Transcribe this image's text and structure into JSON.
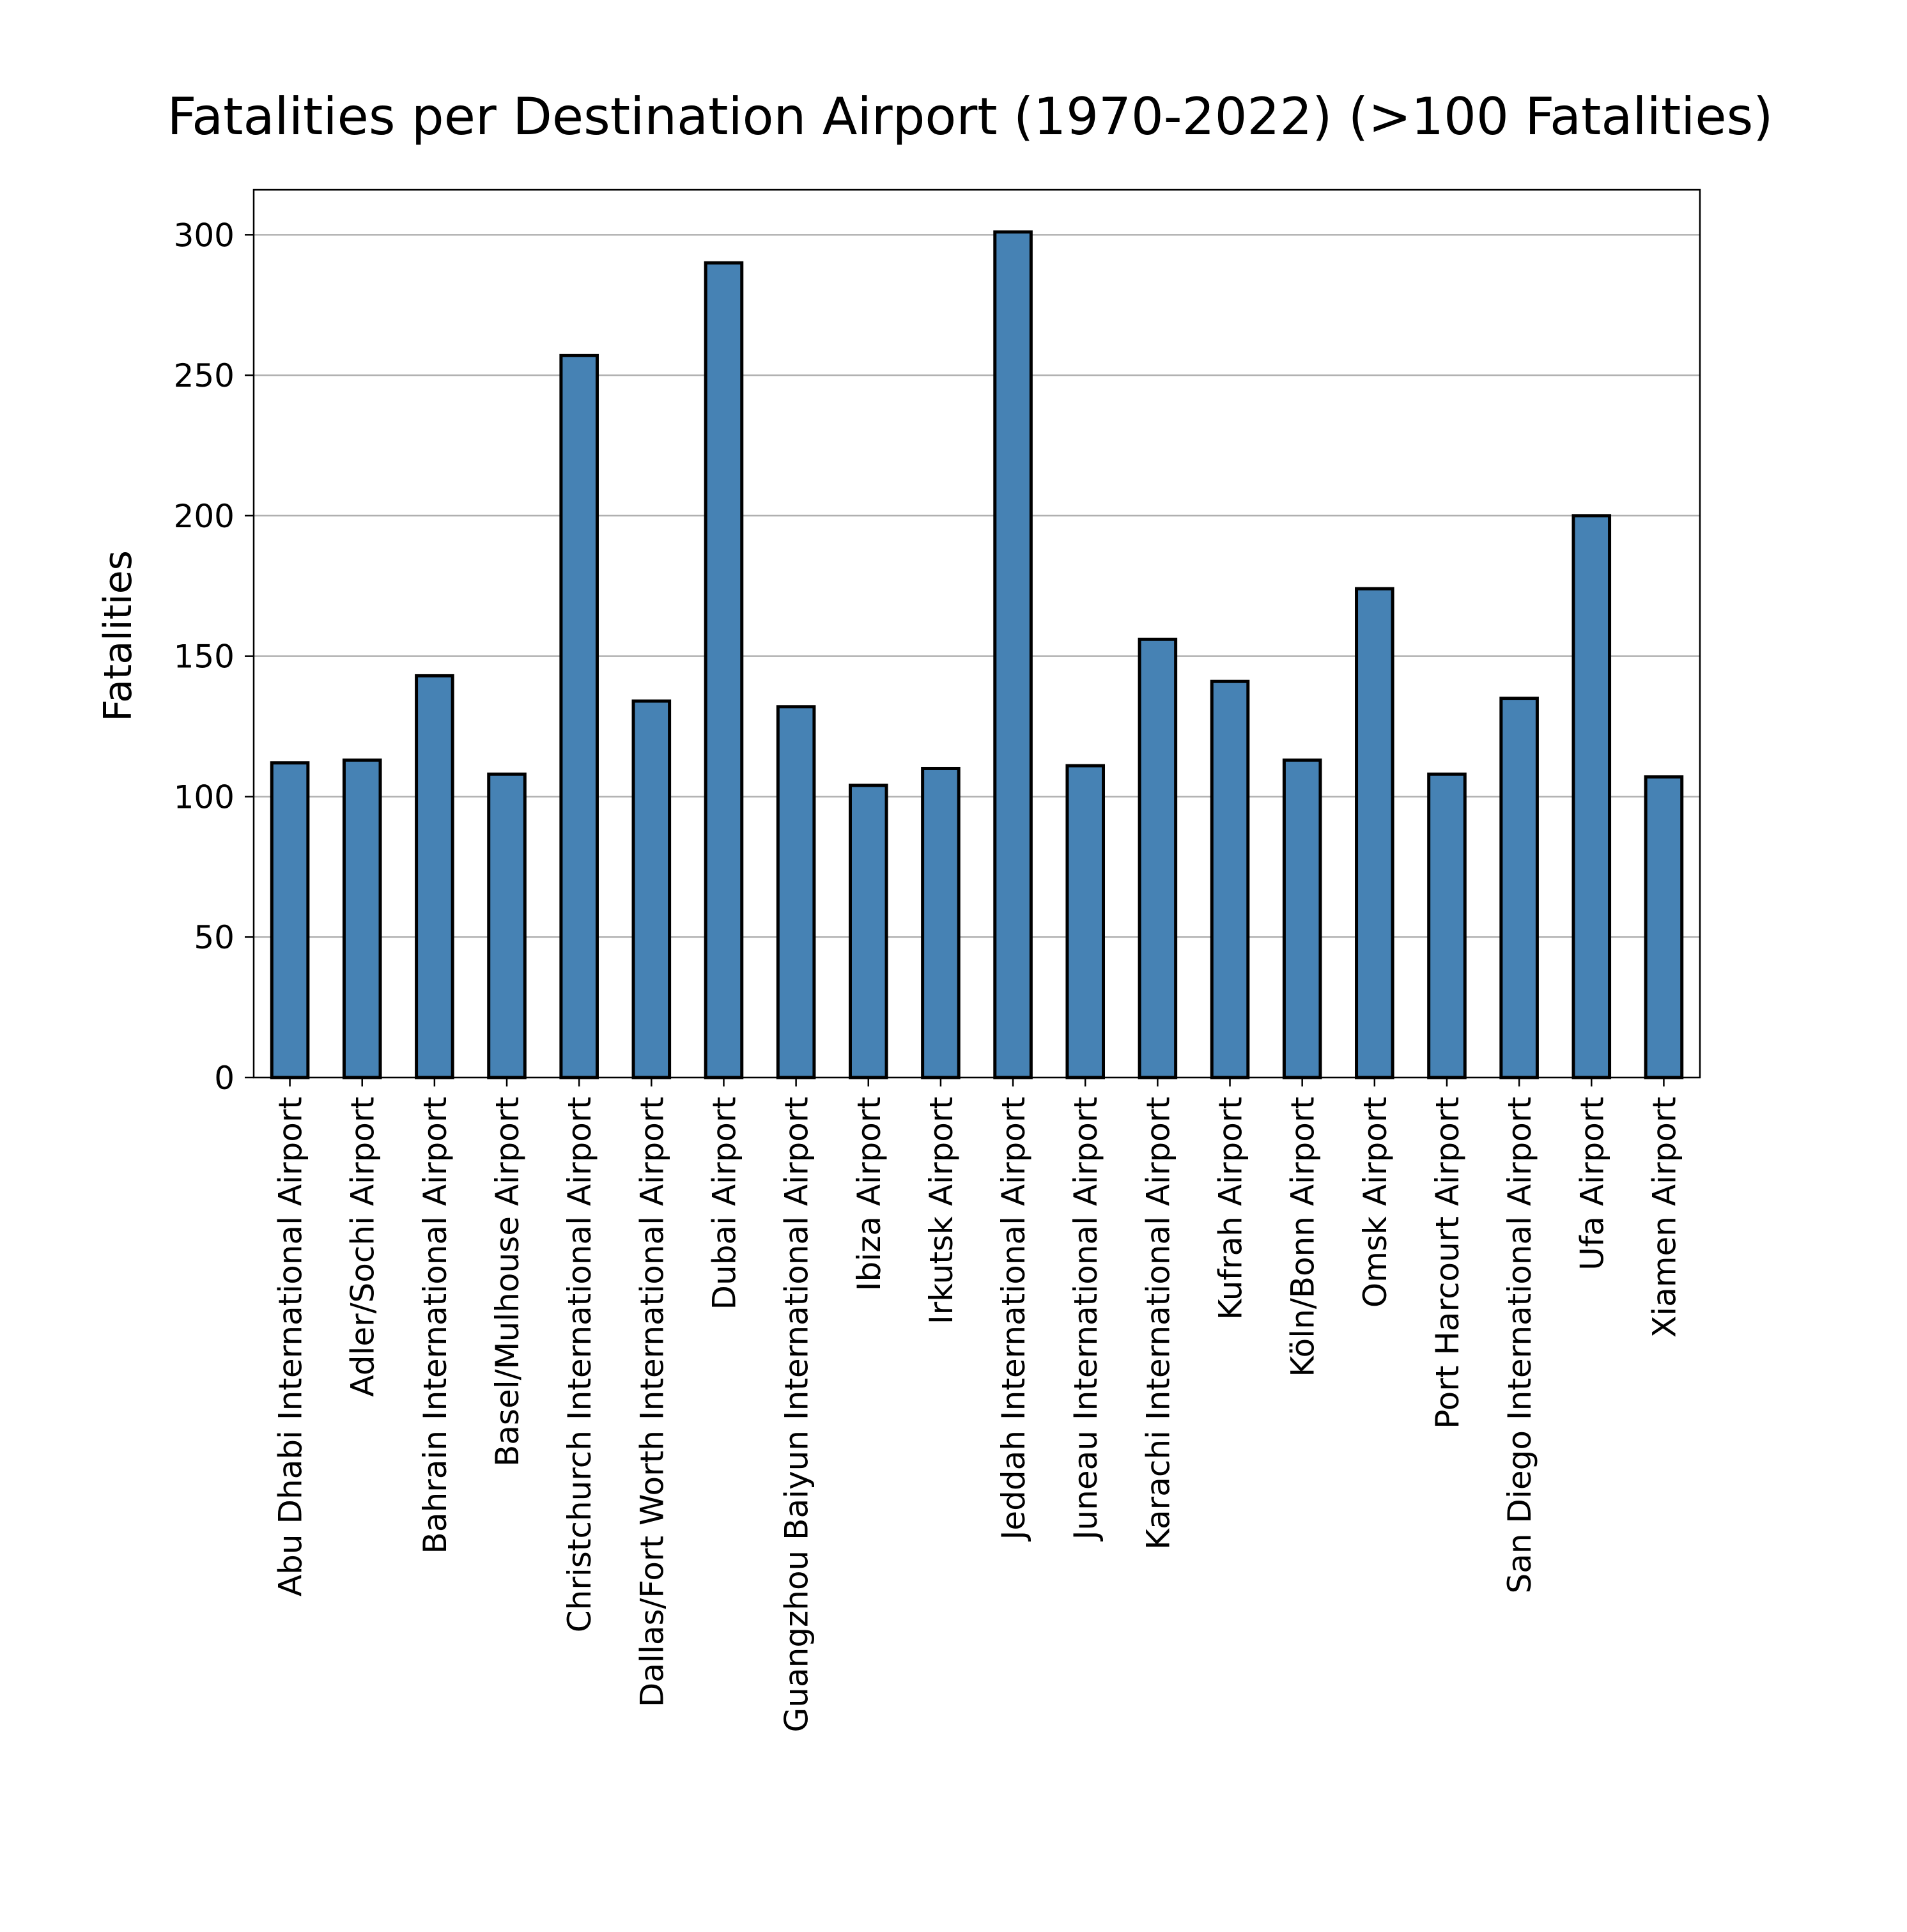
{
  "chart_data": {
    "type": "bar",
    "title": "Fatalities per Destination Airport (1970-2022) (>100 Fatalities)",
    "ylabel": "Fatalities",
    "xlabel": "",
    "ylim": [
      0,
      316
    ],
    "yticks": [
      0,
      50,
      100,
      150,
      200,
      250,
      300
    ],
    "grid": "y",
    "bar_color": "#4682b4",
    "edge_color": "#000000",
    "categories": [
      "Abu Dhabi International Airport",
      "Adler/Sochi Airport",
      "Bahrain International Airport",
      "Basel/Mulhouse Airport",
      "Christchurch International Airport",
      "Dallas/Fort Worth International Airport",
      "Dubai Airport",
      "Guangzhou Baiyun International Airport",
      "Ibiza Airport",
      "Irkutsk Airport",
      "Jeddah International Airport",
      "Juneau International Airport",
      "Karachi International Airport",
      "Kufrah Airport",
      "Köln/Bonn Airport",
      "Omsk Airport",
      "Port Harcourt Airport",
      "San Diego International Airport",
      "Ufa Airport",
      "Xiamen Airport"
    ],
    "values": [
      112,
      113,
      143,
      108,
      257,
      134,
      290,
      132,
      104,
      110,
      301,
      111,
      156,
      141,
      113,
      174,
      108,
      135,
      200,
      107
    ]
  }
}
